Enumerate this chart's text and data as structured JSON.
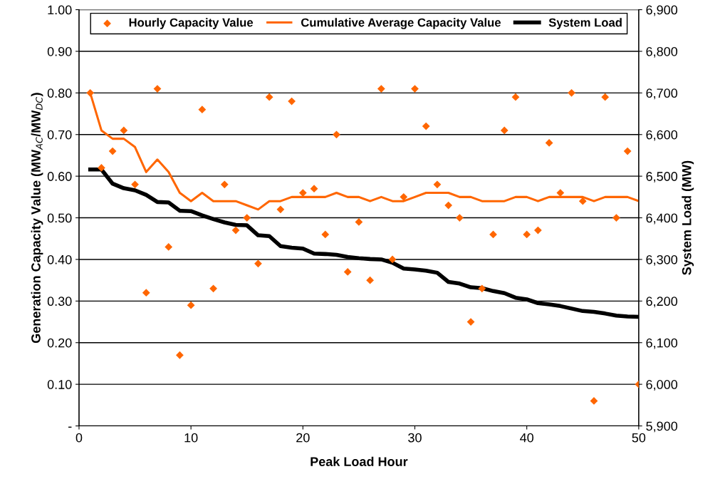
{
  "chart_data": {
    "type": "line",
    "xlabel": "Peak Load Hour",
    "ylabel": "Generation Capacity Value (MW$_{AC}$/MW$_{DC}$)",
    "y2label": "System Load (MW)",
    "x": [
      1,
      2,
      3,
      4,
      5,
      6,
      7,
      8,
      9,
      10,
      11,
      12,
      13,
      14,
      15,
      16,
      17,
      18,
      19,
      20,
      21,
      22,
      23,
      24,
      25,
      26,
      27,
      28,
      29,
      30,
      31,
      32,
      33,
      34,
      35,
      36,
      37,
      38,
      39,
      40,
      41,
      42,
      43,
      44,
      45,
      46,
      47,
      48,
      49,
      50
    ],
    "series": [
      {
        "name": "Hourly Capacity Value",
        "type": "scatter",
        "marker": "diamond",
        "color": "#ff6600",
        "values": [
          0.8,
          0.62,
          0.66,
          0.71,
          0.58,
          0.32,
          0.81,
          0.43,
          0.17,
          0.29,
          0.76,
          0.33,
          0.58,
          0.47,
          0.5,
          0.39,
          0.79,
          0.52,
          0.78,
          0.56,
          0.57,
          0.46,
          0.7,
          0.37,
          0.49,
          0.35,
          0.81,
          0.4,
          0.55,
          0.81,
          0.72,
          0.58,
          0.53,
          0.5,
          0.25,
          0.33,
          0.46,
          0.71,
          0.79,
          0.46,
          0.47,
          0.68,
          0.56,
          0.8,
          0.54,
          0.06,
          0.79,
          0.5,
          0.66,
          0.1
        ]
      },
      {
        "name": "Cumulative Average Capacity Value",
        "color": "#ff6600",
        "values": [
          0.8,
          0.71,
          0.69,
          0.69,
          0.67,
          0.61,
          0.64,
          0.61,
          0.56,
          0.54,
          0.56,
          0.54,
          0.54,
          0.54,
          0.53,
          0.52,
          0.54,
          0.54,
          0.55,
          0.55,
          0.55,
          0.55,
          0.56,
          0.55,
          0.55,
          0.54,
          0.55,
          0.54,
          0.54,
          0.55,
          0.56,
          0.56,
          0.56,
          0.55,
          0.55,
          0.54,
          0.54,
          0.54,
          0.55,
          0.55,
          0.54,
          0.55,
          0.55,
          0.55,
          0.55,
          0.54,
          0.55,
          0.55,
          0.55,
          0.54
        ]
      },
      {
        "name": "System Load",
        "axis": "y2",
        "color": "#000000",
        "values": [
          6516,
          6516,
          6482,
          6471,
          6466,
          6455,
          6438,
          6437,
          6417,
          6416,
          6406,
          6397,
          6389,
          6383,
          6382,
          6358,
          6356,
          6332,
          6328,
          6326,
          6314,
          6313,
          6311,
          6306,
          6303,
          6301,
          6300,
          6292,
          6278,
          6276,
          6273,
          6268,
          6246,
          6242,
          6233,
          6231,
          6224,
          6219,
          6208,
          6204,
          6195,
          6192,
          6188,
          6182,
          6176,
          6174,
          6170,
          6165,
          6163,
          6162
        ]
      }
    ],
    "xlim": [
      0,
      50
    ],
    "xticks": [
      0,
      10,
      20,
      30,
      40,
      50
    ],
    "ylim": [
      0,
      1
    ],
    "yticks": [
      {
        "value": 0,
        "label": "-"
      },
      {
        "value": 0.1,
        "label": "0.10"
      },
      {
        "value": 0.2,
        "label": "0.20"
      },
      {
        "value": 0.3,
        "label": "0.30"
      },
      {
        "value": 0.4,
        "label": "0.40"
      },
      {
        "value": 0.5,
        "label": "0.50"
      },
      {
        "value": 0.6,
        "label": "0.60"
      },
      {
        "value": 0.7,
        "label": "0.70"
      },
      {
        "value": 0.8,
        "label": "0.80"
      },
      {
        "value": 0.9,
        "label": "0.90"
      },
      {
        "value": 1,
        "label": "1.00"
      }
    ],
    "y2lim": [
      5900,
      6900
    ],
    "y2ticks": [
      {
        "value": 5900,
        "label": "5,900"
      },
      {
        "value": 6000,
        "label": "6,000"
      },
      {
        "value": 6100,
        "label": "6,100"
      },
      {
        "value": 6200,
        "label": "6,200"
      },
      {
        "value": 6300,
        "label": "6,300"
      },
      {
        "value": 6400,
        "label": "6,400"
      },
      {
        "value": 6500,
        "label": "6,500"
      },
      {
        "value": 6600,
        "label": "6,600"
      },
      {
        "value": 6700,
        "label": "6,700"
      },
      {
        "value": 6800,
        "label": "6,800"
      },
      {
        "value": 6900,
        "label": "6,900"
      }
    ],
    "grid": "y",
    "legend": "top"
  }
}
